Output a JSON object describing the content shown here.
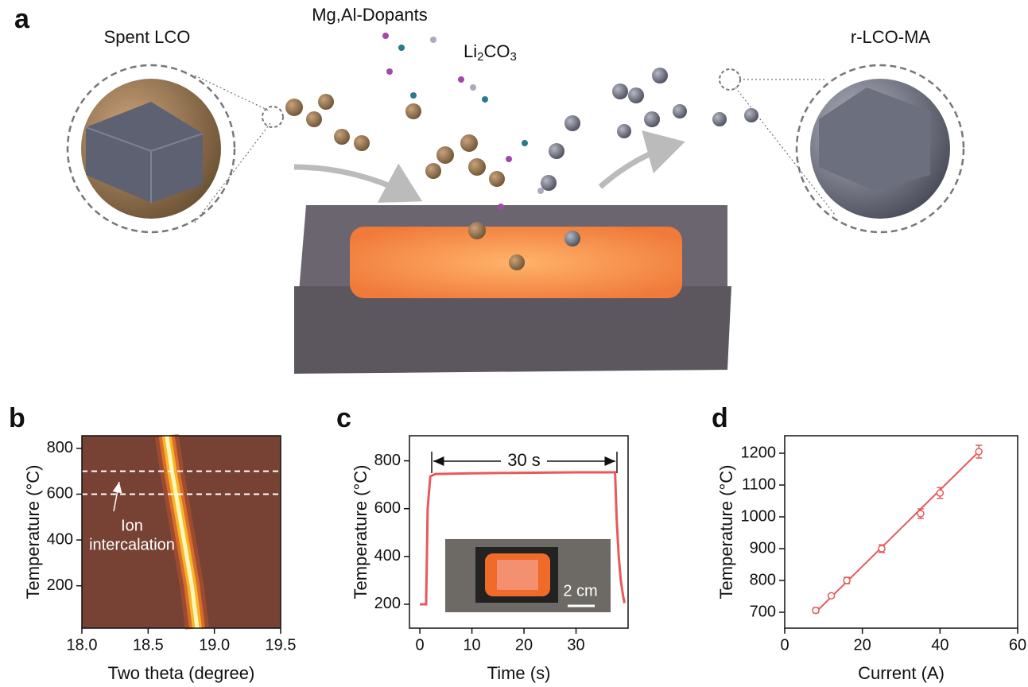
{
  "figure": {
    "panel_a": {
      "letter": "a",
      "left_label": "Spent LCO",
      "dopant_label": "Mg,Al-Dopants",
      "salt_label": [
        "Li",
        "2",
        "CO",
        "3"
      ],
      "right_label": "r-LCO-MA"
    }
  },
  "chart_data": [
    {
      "type": "heatmap",
      "panel": "b",
      "xlabel": "Two theta (degree)",
      "ylabel": "Temperature (°C)",
      "xlim": [
        18,
        19.5
      ],
      "ylim": [
        15,
        855
      ],
      "xticks": [
        {
          "value": 18,
          "label": "18.0"
        },
        {
          "value": 18.5,
          "label": "18.5"
        },
        {
          "value": 19,
          "label": "19.0"
        },
        {
          "value": 19.5,
          "label": "19.5"
        }
      ],
      "yticks": [
        200,
        400,
        600,
        800
      ],
      "x": [
        18.87,
        18.83,
        18.77,
        18.71,
        18.68,
        18.64
      ],
      "values": [
        15,
        200,
        400,
        600,
        700,
        855
      ],
      "hlines": [
        600,
        700
      ],
      "annotation": [
        "Ion",
        "intercalation"
      ]
    },
    {
      "type": "line",
      "panel": "c",
      "xlabel": "Time (s)",
      "ylabel": "Temperature (°C)",
      "xlim": [
        -2,
        40
      ],
      "ylim": [
        100,
        905
      ],
      "xticks": [
        0,
        10,
        20,
        30
      ],
      "yticks": [
        200,
        400,
        600,
        800
      ],
      "series": [
        {
          "color": "#e8595a",
          "x": [
            0,
            1.2,
            1.5,
            2.0,
            3,
            10,
            20,
            30,
            37.5,
            37.8,
            38.2,
            38.6,
            39.0,
            39.3
          ],
          "values": [
            200,
            200,
            600,
            735,
            745,
            748,
            750,
            752,
            752,
            560,
            400,
            300,
            240,
            205
          ]
        }
      ],
      "annotation": "30 s",
      "inset_label": "2 cm"
    },
    {
      "type": "scatter",
      "panel": "d",
      "xlabel": "Current (A)",
      "ylabel": "Temperature (°C)",
      "xlim": [
        0,
        60
      ],
      "ylim": [
        650,
        1255
      ],
      "xticks": [
        0,
        20,
        40,
        60
      ],
      "yticks": [
        700,
        800,
        900,
        1000,
        1100,
        1200
      ],
      "series": [
        {
          "color": "#e8595a",
          "x": [
            8,
            12,
            16,
            25,
            35,
            40,
            50
          ],
          "values": [
            706,
            752,
            800,
            900,
            1010,
            1075,
            1205
          ],
          "errors": [
            8,
            6,
            10,
            12,
            15,
            17,
            20
          ]
        }
      ],
      "fit": {
        "color": "#e8595a",
        "x": [
          8,
          50
        ],
        "values": [
          700,
          1205
        ]
      }
    }
  ]
}
